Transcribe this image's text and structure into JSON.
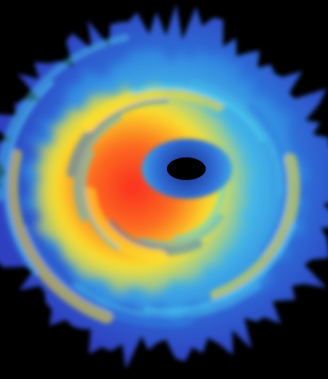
{
  "image": {
    "background_color": "#000000",
    "palette": {
      "outer_blue": "#2f3fbf",
      "mid_blue": "#2f7fdf",
      "light_blue": "#44b6e8",
      "cyan": "#4cd8f2",
      "yellow": "#ffe12a",
      "orange": "#ff8a1a",
      "red": "#ff2a1a",
      "deep_blue": "#1f2a88",
      "core_black": "#000000"
    }
  }
}
